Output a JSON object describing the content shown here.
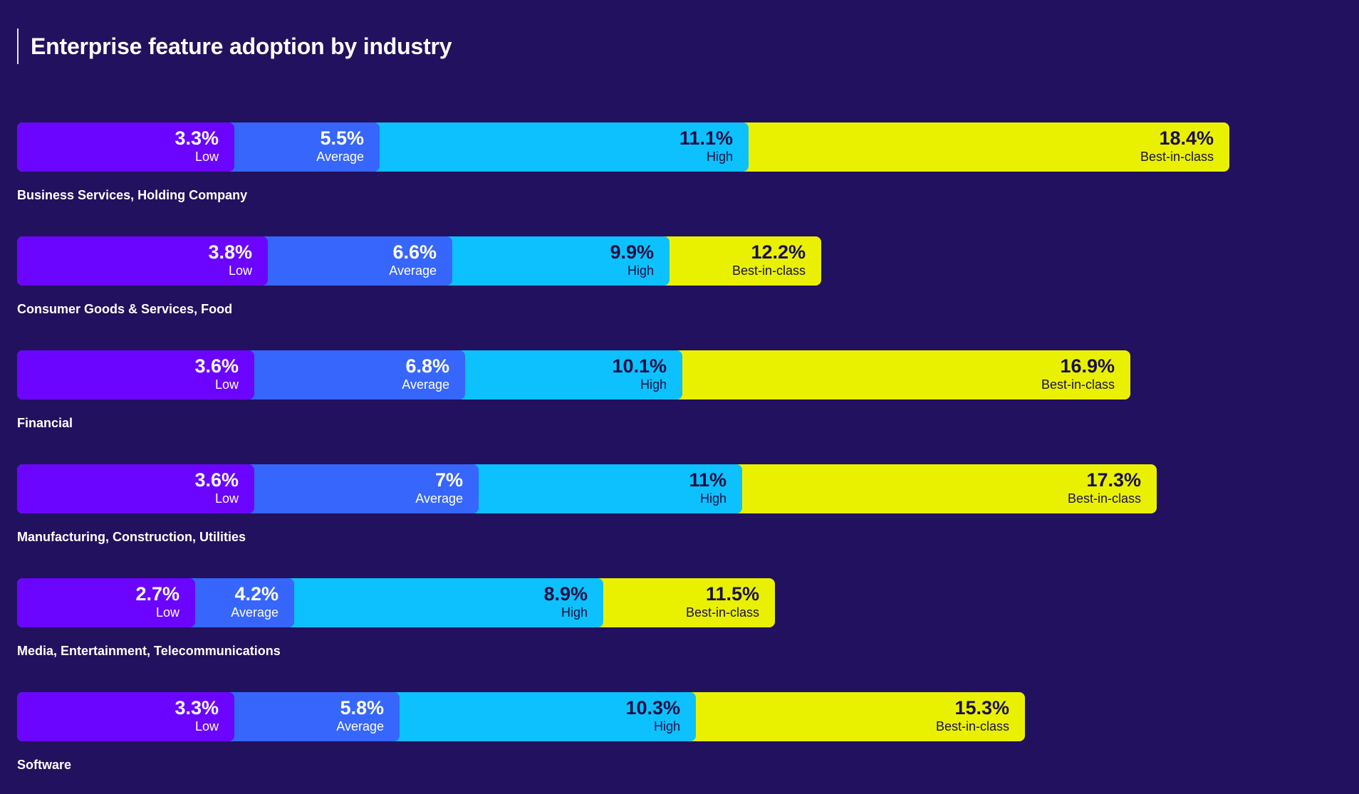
{
  "title": "Enterprise feature adoption by industry",
  "colors": {
    "background": "#22115e",
    "Low": "#6b05ff",
    "Average": "#3766fc",
    "High": "#0cc1fd",
    "Best-in-class": "#eaf100"
  },
  "chart_data": {
    "type": "bar",
    "orientation": "horizontal",
    "stacked": "overlapping",
    "title": "Enterprise feature adoption by industry",
    "unit": "%",
    "tiers": [
      "Low",
      "Average",
      "High",
      "Best-in-class"
    ],
    "categories": [
      "Business Services, Holding Company",
      "Consumer Goods & Services, Food",
      "Financial",
      "Manufacturing, Construction, Utilities",
      "Media, Entertainment, Telecommunications",
      "Software"
    ],
    "series": [
      {
        "name": "Low",
        "values": [
          3.3,
          3.8,
          3.6,
          3.6,
          2.7,
          3.3
        ],
        "labels": [
          "3.3%",
          "3.8%",
          "3.6%",
          "3.6%",
          "2.7%",
          "3.3%"
        ]
      },
      {
        "name": "Average",
        "values": [
          5.5,
          6.6,
          6.8,
          7,
          4.2,
          5.8
        ],
        "labels": [
          "5.5%",
          "6.6%",
          "6.8%",
          "7%",
          "4.2%",
          "5.8%"
        ]
      },
      {
        "name": "High",
        "values": [
          11.1,
          9.9,
          10.1,
          11,
          8.9,
          10.3
        ],
        "labels": [
          "11.1%",
          "9.9%",
          "10.1%",
          "11%",
          "8.9%",
          "10.3%"
        ]
      },
      {
        "name": "Best-in-class",
        "values": [
          18.4,
          12.2,
          16.9,
          17.3,
          11.5,
          15.3
        ],
        "labels": [
          "18.4%",
          "12.2%",
          "16.9%",
          "17.3%",
          "11.5%",
          "15.3%"
        ]
      }
    ]
  }
}
